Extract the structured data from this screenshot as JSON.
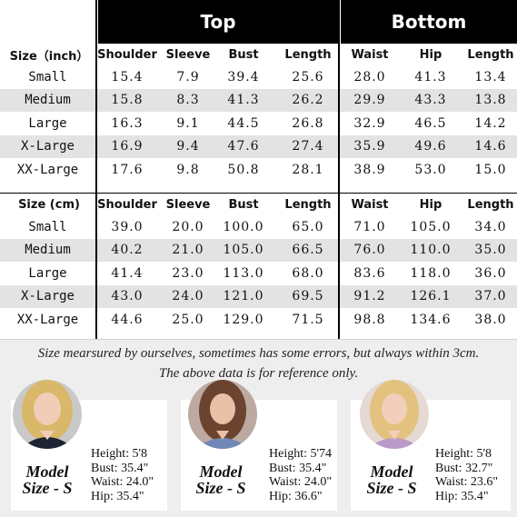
{
  "header": {
    "top": "Top",
    "bottom": "Bottom"
  },
  "table_inch": {
    "label": "Size（inch）",
    "columns": [
      "Shoulder",
      "Sleeve",
      "Bust",
      "Length",
      "Waist",
      "Hip",
      "Length"
    ],
    "rows": [
      {
        "size": "Small",
        "values": [
          "15.4",
          "7.9",
          "39.4",
          "25.6",
          "28.0",
          "41.3",
          "13.4"
        ]
      },
      {
        "size": "Medium",
        "values": [
          "15.8",
          "8.3",
          "41.3",
          "26.2",
          "29.9",
          "43.3",
          "13.8"
        ]
      },
      {
        "size": "Large",
        "values": [
          "16.3",
          "9.1",
          "44.5",
          "26.8",
          "32.9",
          "46.5",
          "14.2"
        ]
      },
      {
        "size": "X-Large",
        "values": [
          "16.9",
          "9.4",
          "47.6",
          "27.4",
          "35.9",
          "49.6",
          "14.6"
        ]
      },
      {
        "size": "XX-Large",
        "values": [
          "17.6",
          "9.8",
          "50.8",
          "28.1",
          "38.9",
          "53.0",
          "15.0"
        ]
      }
    ]
  },
  "table_cm": {
    "label": "Size (cm)",
    "columns": [
      "Shoulder",
      "Sleeve",
      "Bust",
      "Length",
      "Waist",
      "Hip",
      "Length"
    ],
    "rows": [
      {
        "size": "Small",
        "values": [
          "39.0",
          "20.0",
          "100.0",
          "65.0",
          "71.0",
          "105.0",
          "34.0"
        ]
      },
      {
        "size": "Medium",
        "values": [
          "40.2",
          "21.0",
          "105.0",
          "66.5",
          "76.0",
          "110.0",
          "35.0"
        ]
      },
      {
        "size": "Large",
        "values": [
          "41.4",
          "23.0",
          "113.0",
          "68.0",
          "83.6",
          "118.0",
          "36.0"
        ]
      },
      {
        "size": "X-Large",
        "values": [
          "43.0",
          "24.0",
          "121.0",
          "69.5",
          "91.2",
          "126.1",
          "37.0"
        ]
      },
      {
        "size": "XX-Large",
        "values": [
          "44.6",
          "25.0",
          "129.0",
          "71.5",
          "98.8",
          "134.6",
          "38.0"
        ]
      }
    ]
  },
  "notes": {
    "line1": "Size mearsured by ourselves, sometimes has some errors, but always within 3cm.",
    "line2": "The above data is for reference only."
  },
  "models": [
    {
      "label_1": "Model",
      "label_2": "Size - S",
      "height": "Height: 5'8",
      "bust": "Bust: 35.4\"",
      "waist": "Waist: 24.0\"",
      "hip": "Hip: 35.4\"",
      "hair": "#d9b86a",
      "top": "#1f2433"
    },
    {
      "label_1": "Model",
      "label_2": "Size - S",
      "height": "Height: 5'74",
      "bust": "Bust: 35.4\"",
      "waist": "Waist: 24.0\"",
      "hip": "Hip: 36.6\"",
      "hair": "#6b4430",
      "top": "#6f88b8"
    },
    {
      "label_1": "Model",
      "label_2": "Size - S",
      "height": "Height: 5'8",
      "bust": "Bust: 32.7\"",
      "waist": "Waist: 23.6\"",
      "hip": "Hip: 35.4\"",
      "hair": "#e2c27e",
      "top": "#b99ac8"
    }
  ]
}
